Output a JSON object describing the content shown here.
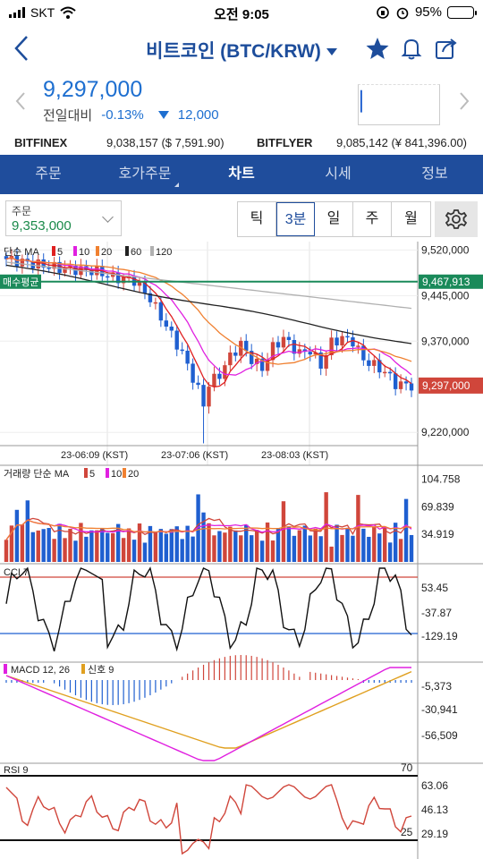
{
  "status": {
    "carrier": "SKT",
    "time": "오전 9:05",
    "battery": "95%"
  },
  "header": {
    "title": "비트코인 (BTC/KRW)"
  },
  "price": {
    "current": "9,297,000",
    "change_label": "전일대비",
    "change_pct": "-0.13%",
    "change_abs": "12,000"
  },
  "exchanges": [
    {
      "name": "BITFINEX",
      "value": "9,038,157 ($ 7,591.90)"
    },
    {
      "name": "BITFLYER",
      "value": "9,085,142 (¥ 841,396.00)"
    }
  ],
  "tabs": [
    {
      "label": "주문"
    },
    {
      "label": "호가주문"
    },
    {
      "label": "차트"
    },
    {
      "label": "시세"
    },
    {
      "label": "정보"
    }
  ],
  "order_select": {
    "label": "주문",
    "value": "9,353,000"
  },
  "periods": [
    {
      "label": "틱"
    },
    {
      "label": "3분"
    },
    {
      "label": "일"
    },
    {
      "label": "주"
    },
    {
      "label": "월"
    }
  ],
  "colors": {
    "up": "#d0463b",
    "down": "#1f5fd0",
    "brand": "#1f4d9c",
    "avg": "#1a8a5a"
  },
  "chart_data": [
    {
      "type": "candlestick",
      "title": "단순 MA",
      "legend": [
        "5",
        "10",
        "20",
        "60",
        "120"
      ],
      "ytick_labels": [
        "9,520,000",
        "9,445,000",
        "9,370,000",
        "9,220,000"
      ],
      "ytick_values": [
        9520000,
        9445000,
        9370000,
        9220000
      ],
      "ylim": [
        9210000,
        9525000
      ],
      "current_label": "9,297,000",
      "current_value": 9297000,
      "avg_price_label": "매수평균",
      "avg_price_value_label": "9,467,913",
      "avg_price_value": 9467913,
      "xtick_labels": [
        "23-06:09 (KST)",
        "23-07:06 (KST)",
        "23-08:03 (KST)"
      ],
      "ma_colors": [
        "#e02020",
        "#e020e0",
        "#f08030",
        "#222222",
        "#b0b0b0"
      ]
    },
    {
      "type": "bar",
      "title": "거래량 단순 MA",
      "legend": [
        "5",
        "10",
        "20"
      ],
      "ytick_labels": [
        "104.758",
        "69.839",
        "34.919"
      ],
      "ytick_values": [
        104.758,
        69.839,
        34.919
      ]
    },
    {
      "type": "line",
      "title": "CCI 7",
      "ytick_labels": [
        "53.45",
        "-37.87",
        "-129.19"
      ],
      "ytick_values": [
        53.45,
        -37.87,
        -129.19
      ]
    },
    {
      "type": "bar",
      "title": "MACD 12, 26",
      "signal_label": "신호 9",
      "ytick_labels": [
        "-5,373",
        "-30,941",
        "-56,509"
      ],
      "ytick_values": [
        -5373,
        -30941,
        -56509
      ]
    },
    {
      "type": "line",
      "title": "RSI 9",
      "upper_label": "70",
      "lower_label": "25",
      "ytick_labels": [
        "63.06",
        "46.13",
        "29.19"
      ],
      "ytick_values": [
        63.06,
        46.13,
        29.19
      ]
    }
  ]
}
